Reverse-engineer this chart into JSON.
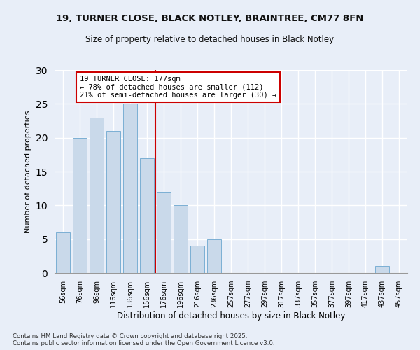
{
  "title1": "19, TURNER CLOSE, BLACK NOTLEY, BRAINTREE, CM77 8FN",
  "title2": "Size of property relative to detached houses in Black Notley",
  "xlabel": "Distribution of detached houses by size in Black Notley",
  "ylabel": "Number of detached properties",
  "categories": [
    "56sqm",
    "76sqm",
    "96sqm",
    "116sqm",
    "136sqm",
    "156sqm",
    "176sqm",
    "196sqm",
    "216sqm",
    "236sqm",
    "257sqm",
    "277sqm",
    "297sqm",
    "317sqm",
    "337sqm",
    "357sqm",
    "377sqm",
    "397sqm",
    "417sqm",
    "437sqm",
    "457sqm"
  ],
  "values": [
    6,
    20,
    23,
    21,
    25,
    17,
    12,
    10,
    4,
    5,
    0,
    0,
    0,
    0,
    0,
    0,
    0,
    0,
    0,
    1,
    0
  ],
  "bar_color": "#c9d9ea",
  "bar_edgecolor": "#7bafd4",
  "ref_line_x": 5.5,
  "ref_line_color": "#cc0000",
  "annotation_text": "19 TURNER CLOSE: 177sqm\n← 78% of detached houses are smaller (112)\n21% of semi-detached houses are larger (30) →",
  "annotation_box_color": "#ffffff",
  "annotation_box_edgecolor": "#cc0000",
  "ylim": [
    0,
    30
  ],
  "yticks": [
    0,
    5,
    10,
    15,
    20,
    25,
    30
  ],
  "background_color": "#e8eef8",
  "grid_color": "#ffffff",
  "footer": "Contains HM Land Registry data © Crown copyright and database right 2025.\nContains public sector information licensed under the Open Government Licence v3.0."
}
